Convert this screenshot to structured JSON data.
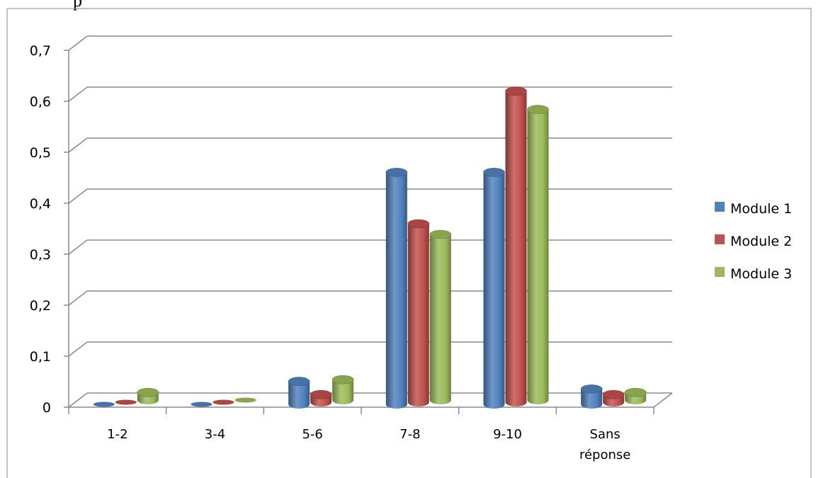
{
  "top_text": "p",
  "chart_data": {
    "type": "bar",
    "style": "3d-cylinder",
    "categories": [
      "1-2",
      "3-4",
      "5-6",
      "7-8",
      "9-10",
      "Sans réponse"
    ],
    "y_ticks": [
      "0",
      "0,1",
      "0,2",
      "0,3",
      "0,4",
      "0,5",
      "0,6",
      "0,7"
    ],
    "ylim": [
      0,
      0.7
    ],
    "grid": true,
    "legend_position": "right",
    "series": [
      {
        "name": "Module 1",
        "color": "#4F81BD",
        "values": [
          0,
          0,
          0.045,
          0.455,
          0.455,
          0.03
        ]
      },
      {
        "name": "Module 2",
        "color": "#C0504D",
        "values": [
          0,
          0,
          0.015,
          0.35,
          0.61,
          0.015
        ]
      },
      {
        "name": "Module 3",
        "color": "#9BBB59",
        "values": [
          0.015,
          0,
          0.04,
          0.325,
          0.57,
          0.015
        ]
      }
    ]
  }
}
